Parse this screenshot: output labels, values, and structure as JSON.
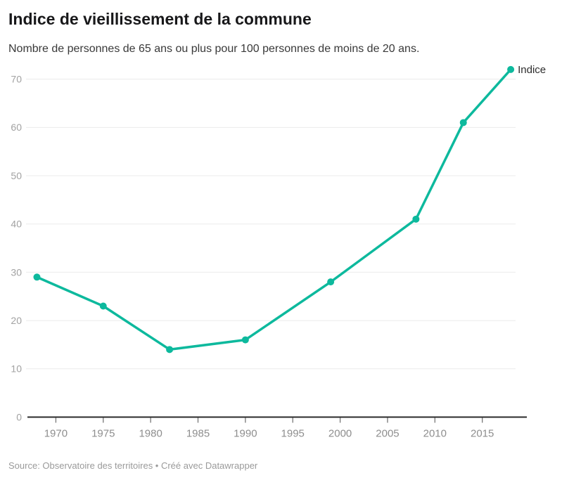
{
  "header": {
    "title": "Indice de vieillissement de la commune",
    "subtitle": "Nombre de personnes de 65 ans ou plus pour 100 personnes de moins de 20 ans."
  },
  "chart_data": {
    "type": "line",
    "title": "Indice de vieillissement de la commune",
    "subtitle": "Nombre de personnes de 65 ans ou plus pour 100 personnes de moins de 20 ans.",
    "x": [
      1968,
      1975,
      1982,
      1990,
      1999,
      2008,
      2013,
      2018
    ],
    "series": [
      {
        "name": "Indice",
        "values": [
          29,
          23,
          14,
          16,
          28,
          41,
          61,
          72
        ]
      }
    ],
    "x_ticks": [
      1970,
      1975,
      1980,
      1985,
      1990,
      1995,
      2000,
      2005,
      2010,
      2015
    ],
    "y_ticks": [
      0,
      10,
      20,
      30,
      40,
      50,
      60,
      70
    ],
    "xlim": [
      1967,
      2019.7
    ],
    "ylim": [
      0,
      73
    ],
    "grid": "horizontal",
    "legend_position": "end-of-line-label",
    "marker": "circle"
  },
  "colors": {
    "accent": "#0DB99D",
    "grid": "#ebebeb",
    "axis": "#2b2b2b",
    "tick_mark": "#777777",
    "x_tick_label": "#8e8e8e",
    "y_tick_label": "#a2a2a2",
    "series_label": "#2d2d2d"
  },
  "footer": {
    "text": "Source: Observatoire des territoires • Créé avec Datawrapper"
  }
}
